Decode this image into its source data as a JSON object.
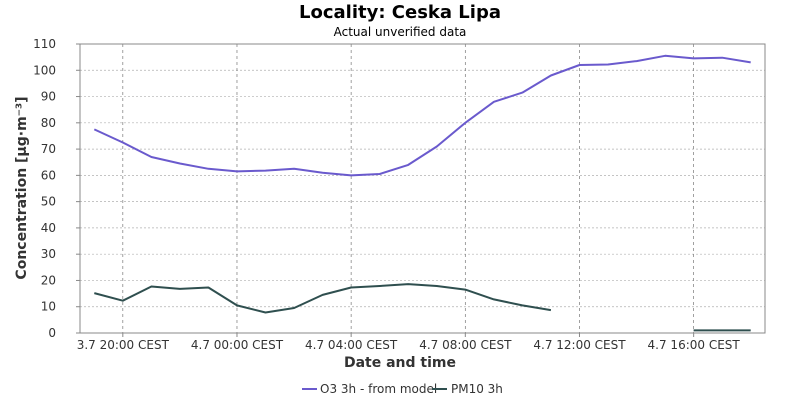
{
  "colors": {
    "o3": "#6a5acd",
    "pm10": "#2f4f4f",
    "grid": "#b0b0b0",
    "axis": "#888888",
    "background": "#ffffff"
  },
  "chart_data": {
    "type": "line",
    "title": "Locality: Ceska Lipa",
    "subtitle": "Actual unverified data",
    "xlabel": "Date and time",
    "ylabel": "Concentration [µg·m⁻³]",
    "ylim": [
      0,
      110
    ],
    "yticks": [
      0,
      10,
      20,
      30,
      40,
      50,
      60,
      70,
      80,
      90,
      100,
      110
    ],
    "xlim": [
      -1.5,
      22.5
    ],
    "xticks": [
      {
        "x": 0,
        "label": "3.7 20:00 CEST"
      },
      {
        "x": 4,
        "label": "4.7 00:00 CEST"
      },
      {
        "x": 8,
        "label": "4.7 04:00 CEST"
      },
      {
        "x": 12,
        "label": "4.7 08:00 CEST"
      },
      {
        "x": 16,
        "label": "4.7 12:00 CEST"
      },
      {
        "x": 20,
        "label": "4.7 16:00 CEST"
      }
    ],
    "grid": true,
    "legend_position": "bottom",
    "series": [
      {
        "name": "O3 3h - from model",
        "color": "#6a5acd",
        "points": [
          [
            -1,
            77.5
          ],
          [
            0,
            72.5
          ],
          [
            1,
            67
          ],
          [
            2,
            64.5
          ],
          [
            3,
            62.5
          ],
          [
            4,
            61.5
          ],
          [
            5,
            61.8
          ],
          [
            6,
            62.5
          ],
          [
            7,
            61
          ],
          [
            8,
            60
          ],
          [
            9,
            60.5
          ],
          [
            10,
            64
          ],
          [
            11,
            71
          ],
          [
            12,
            80
          ],
          [
            13,
            88
          ],
          [
            14,
            91.5
          ],
          [
            15,
            98
          ],
          [
            16,
            102
          ],
          [
            17,
            102.2
          ],
          [
            18,
            103.5
          ],
          [
            19,
            105.5
          ],
          [
            20,
            104.5
          ],
          [
            21,
            104.8
          ],
          [
            22,
            103
          ]
        ]
      },
      {
        "name": "PM10 3h",
        "color": "#2f4f4f",
        "points": [
          [
            -1,
            15.2
          ],
          [
            0,
            12.3
          ],
          [
            1,
            17.7
          ],
          [
            2,
            16.8
          ],
          [
            3,
            17.3
          ],
          [
            4,
            10.5
          ],
          [
            5,
            7.8
          ],
          [
            6,
            9.5
          ],
          [
            7,
            14.5
          ],
          [
            8,
            17.3
          ],
          [
            9,
            17.9
          ],
          [
            10,
            18.6
          ],
          [
            11,
            17.9
          ],
          [
            12,
            16.5
          ],
          [
            13,
            12.8
          ],
          [
            14,
            10.5
          ],
          [
            15,
            8.7
          ]
        ],
        "segments_extra": [
          [
            [
              20,
              1
            ],
            [
              21,
              1
            ],
            [
              22,
              1
            ]
          ]
        ]
      }
    ]
  }
}
